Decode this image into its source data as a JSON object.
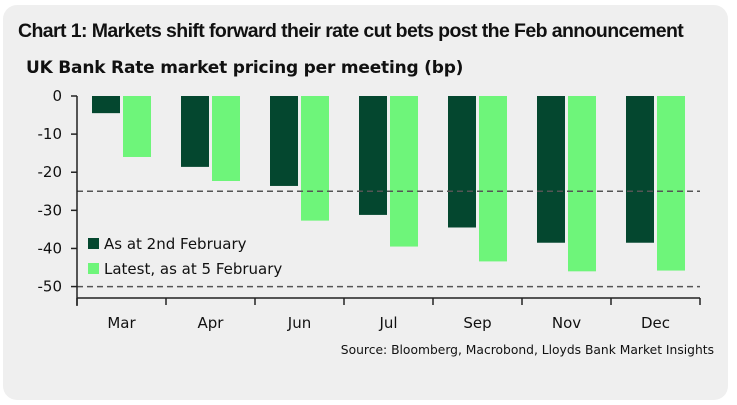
{
  "chart_data": {
    "type": "bar",
    "title": "Chart 1: Markets shift forward their rate cut bets post the Feb announcement",
    "subtitle": "UK Bank Rate market pricing per meeting (bp)",
    "xlabel": "",
    "ylabel": "",
    "categories": [
      "Mar",
      "Apr",
      "Jun",
      "Jul",
      "Sep",
      "Nov",
      "Dec"
    ],
    "series": [
      {
        "name": "As at 2nd February",
        "color": "#04472f",
        "values": [
          -4.5,
          -18.6,
          -23.6,
          -31.2,
          -34.5,
          -38.5,
          -38.5
        ]
      },
      {
        "name": "Latest, as at 5 February",
        "color": "#6ef57a",
        "values": [
          -16.0,
          -22.3,
          -32.7,
          -39.5,
          -43.4,
          -46.0,
          -45.8
        ]
      }
    ],
    "ylim": [
      -53,
      0
    ],
    "yticks": [
      0,
      -10,
      -20,
      -30,
      -40,
      -50
    ],
    "reference_lines": [
      -25,
      -50
    ],
    "grid": false,
    "legend_position": "bottom-left inside plot",
    "source": "Source: Bloomberg, Macrobond, Lloyds Bank Market Insights"
  }
}
